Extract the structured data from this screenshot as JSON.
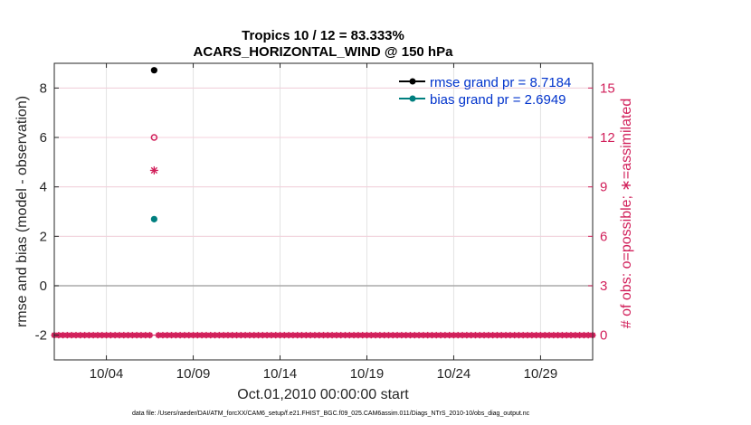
{
  "chart_data": {
    "type": "scatter",
    "title": "Tropics 10 / 12 = 83.333%",
    "subtitle": "ACARS_HORIZONTAL_WIND @ 150 hPa",
    "xlabel": "Oct.01,2010 00:00:00 start",
    "ylabel_left": "rmse and bias (model - observation)",
    "ylabel_right": "# of obs: o=possible; ∗=assimilated",
    "footer": "data file: /Users/raeder/DAI/ATM_forcXX/CAM6_setup/f.e21.FHIST_BGC.f09_025.CAM6assim.011/Diags_NTrS_2010-10/obs_diag_output.nc",
    "x_tick_labels": [
      "10/04",
      "10/09",
      "10/14",
      "10/19",
      "10/24",
      "10/29"
    ],
    "x_tick_values": [
      4,
      9,
      14,
      19,
      24,
      29
    ],
    "xlim": [
      1,
      32
    ],
    "ylim_left": [
      -3,
      9
    ],
    "y_ticks_left": [
      -2,
      0,
      2,
      4,
      6,
      8
    ],
    "ylim_right": [
      -1.5,
      16.5
    ],
    "y_ticks_right": [
      0,
      3,
      6,
      9,
      12,
      15
    ],
    "grid": true,
    "legend_position": "top-right",
    "colors": {
      "rmse": "#000000",
      "bias": "#007f7f",
      "obs": "#d11f5a",
      "zero_line": "#aaaaaa",
      "legend_text": "#0033cc"
    },
    "series": [
      {
        "name": "rmse grand pr = 8.7184",
        "axis": "left",
        "marker": "filled-circle",
        "x": [
          6.75
        ],
        "y": [
          8.7184
        ]
      },
      {
        "name": "bias grand pr = 2.6949",
        "axis": "left",
        "marker": "filled-circle",
        "x": [
          6.75
        ],
        "y": [
          2.6949
        ]
      }
    ],
    "obs_possible": {
      "axis": "right",
      "marker": "open-circle",
      "x": [
        6.75
      ],
      "y": [
        12
      ]
    },
    "obs_assimilated": {
      "axis": "right",
      "marker": "asterisk",
      "x": [
        6.75
      ],
      "y": [
        10
      ]
    },
    "zero_obs_row": {
      "axis": "right",
      "y": 0,
      "x_start": 1,
      "x_end": 32,
      "step": 0.25,
      "skip_x": [
        6.75
      ]
    }
  }
}
